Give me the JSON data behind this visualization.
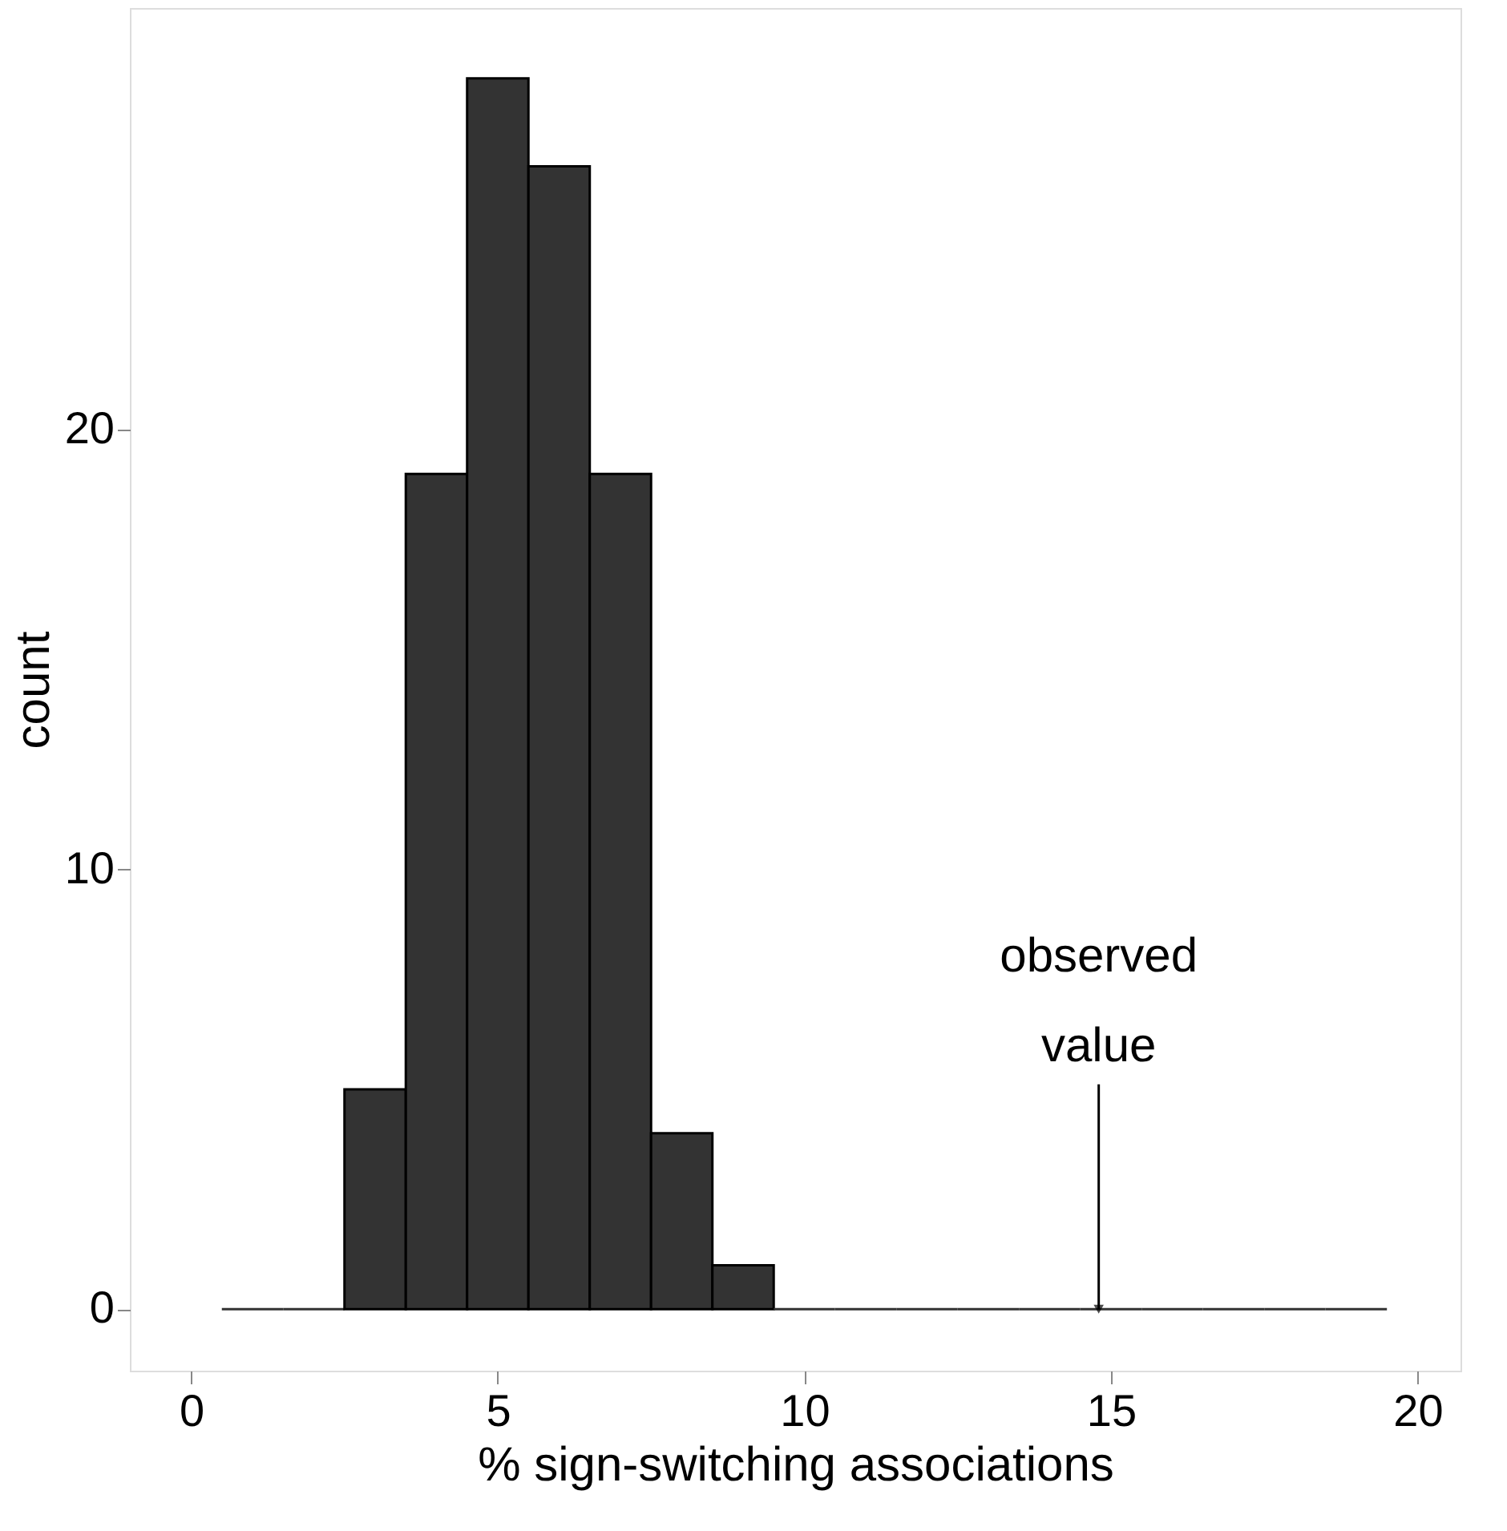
{
  "chart_data": {
    "type": "histogram",
    "bins": [
      0.5,
      1.5,
      2.5,
      3.5,
      4.5,
      5.5,
      6.5,
      7.5,
      8.5,
      9.5,
      10.5,
      11.5,
      12.5,
      13.5,
      14.5,
      15.5,
      16.5,
      17.5,
      18.5,
      19.5
    ],
    "values": [
      0,
      0,
      5,
      19,
      28,
      26,
      19,
      4,
      1,
      0,
      0,
      0,
      0,
      0,
      0,
      0,
      0,
      0,
      0
    ],
    "color": "#333333",
    "xlabel": "% sign-switching associations",
    "ylabel": "count",
    "xlim": [
      -1,
      20.7
    ],
    "ylim": [
      -1.4,
      29.6
    ],
    "xticks": [
      0,
      5,
      10,
      15,
      20
    ],
    "yticks": [
      0,
      10,
      20
    ],
    "grid": false,
    "annotations": [
      {
        "text": "observed value",
        "x": 14.8,
        "y": 0
      }
    ]
  }
}
